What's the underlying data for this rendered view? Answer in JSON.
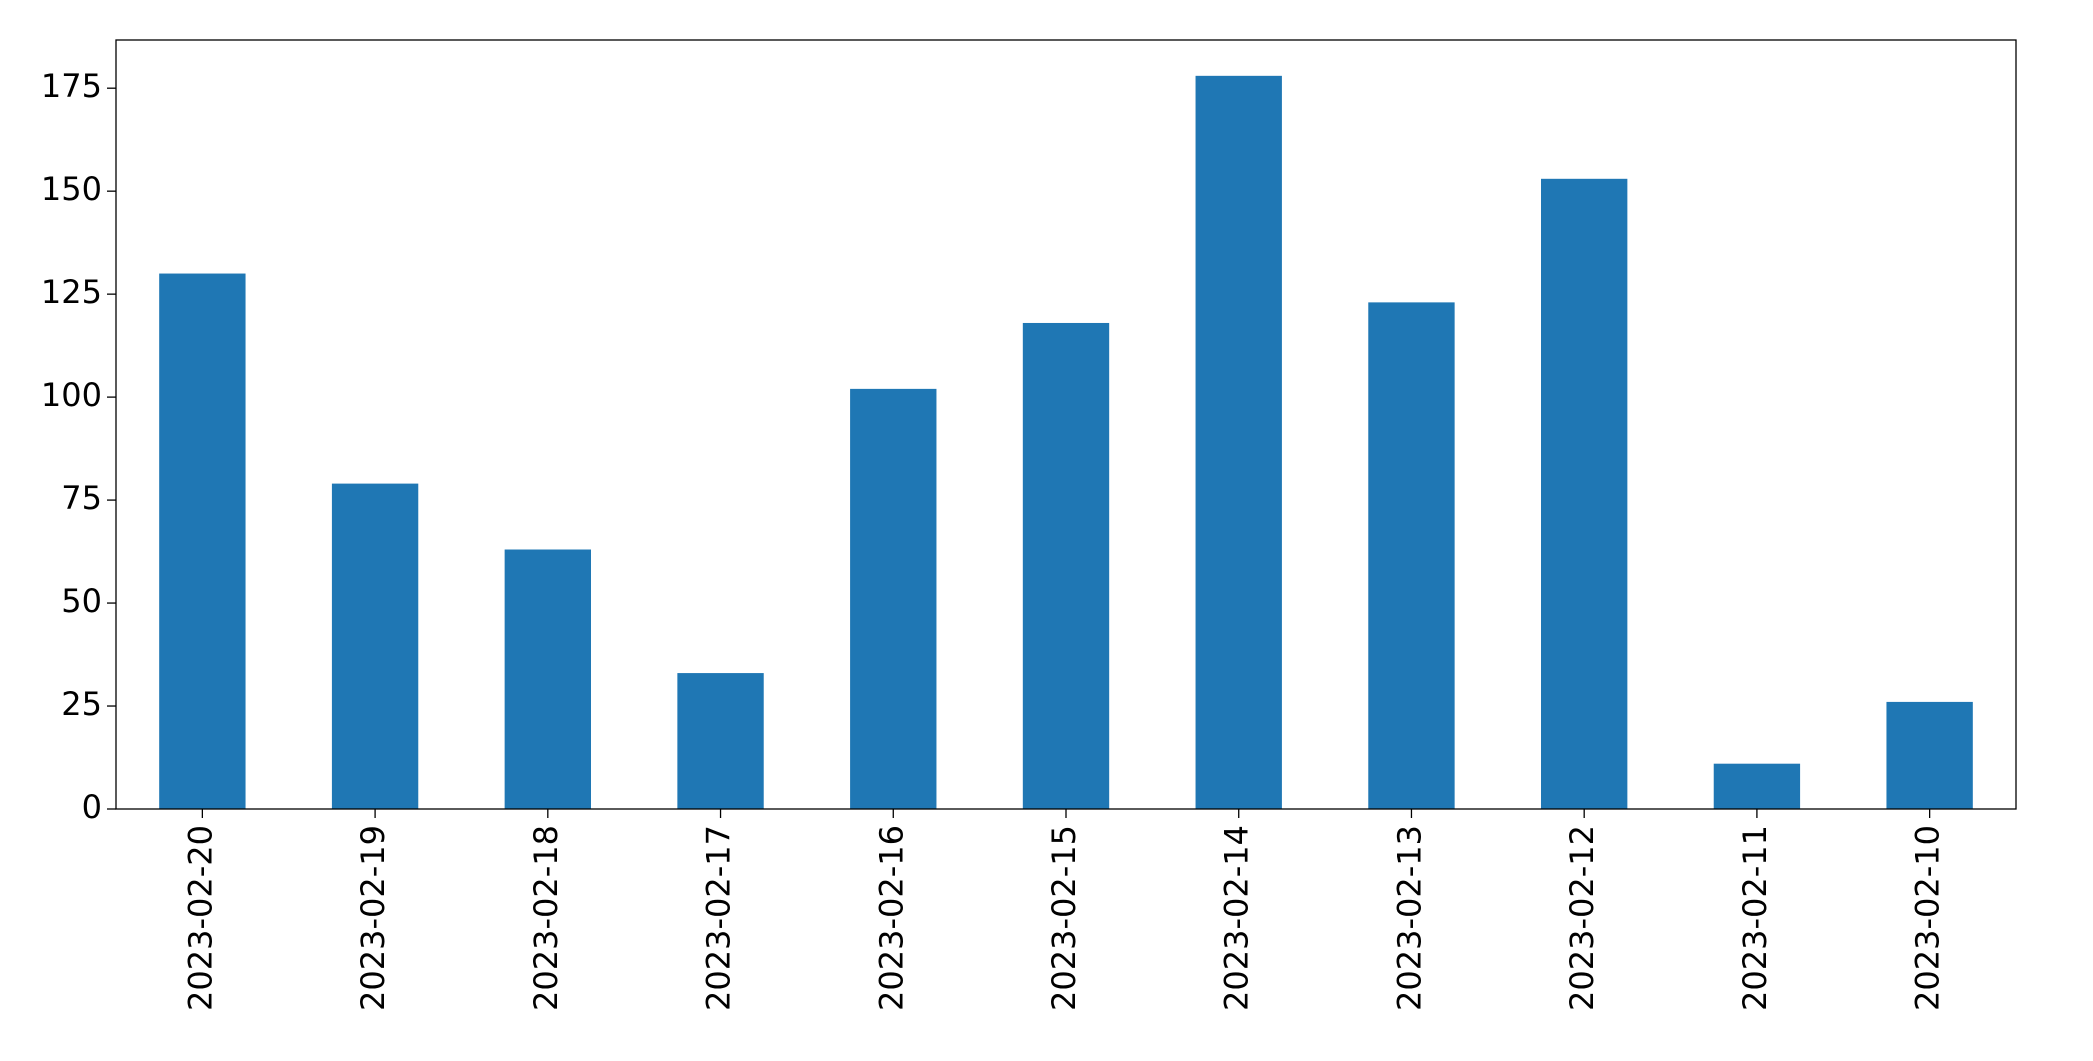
{
  "chart_data": {
    "type": "bar",
    "categories": [
      "2023-02-20",
      "2023-02-19",
      "2023-02-18",
      "2023-02-17",
      "2023-02-16",
      "2023-02-15",
      "2023-02-14",
      "2023-02-13",
      "2023-02-12",
      "2023-02-11",
      "2023-02-10"
    ],
    "values": [
      130,
      79,
      63,
      33,
      102,
      118,
      178,
      123,
      153,
      11,
      26
    ],
    "color": "#1f77b4",
    "ylim": [
      0,
      186.7
    ],
    "yticks": [
      0,
      25,
      50,
      75,
      100,
      125,
      150,
      175
    ],
    "grid": false
  }
}
